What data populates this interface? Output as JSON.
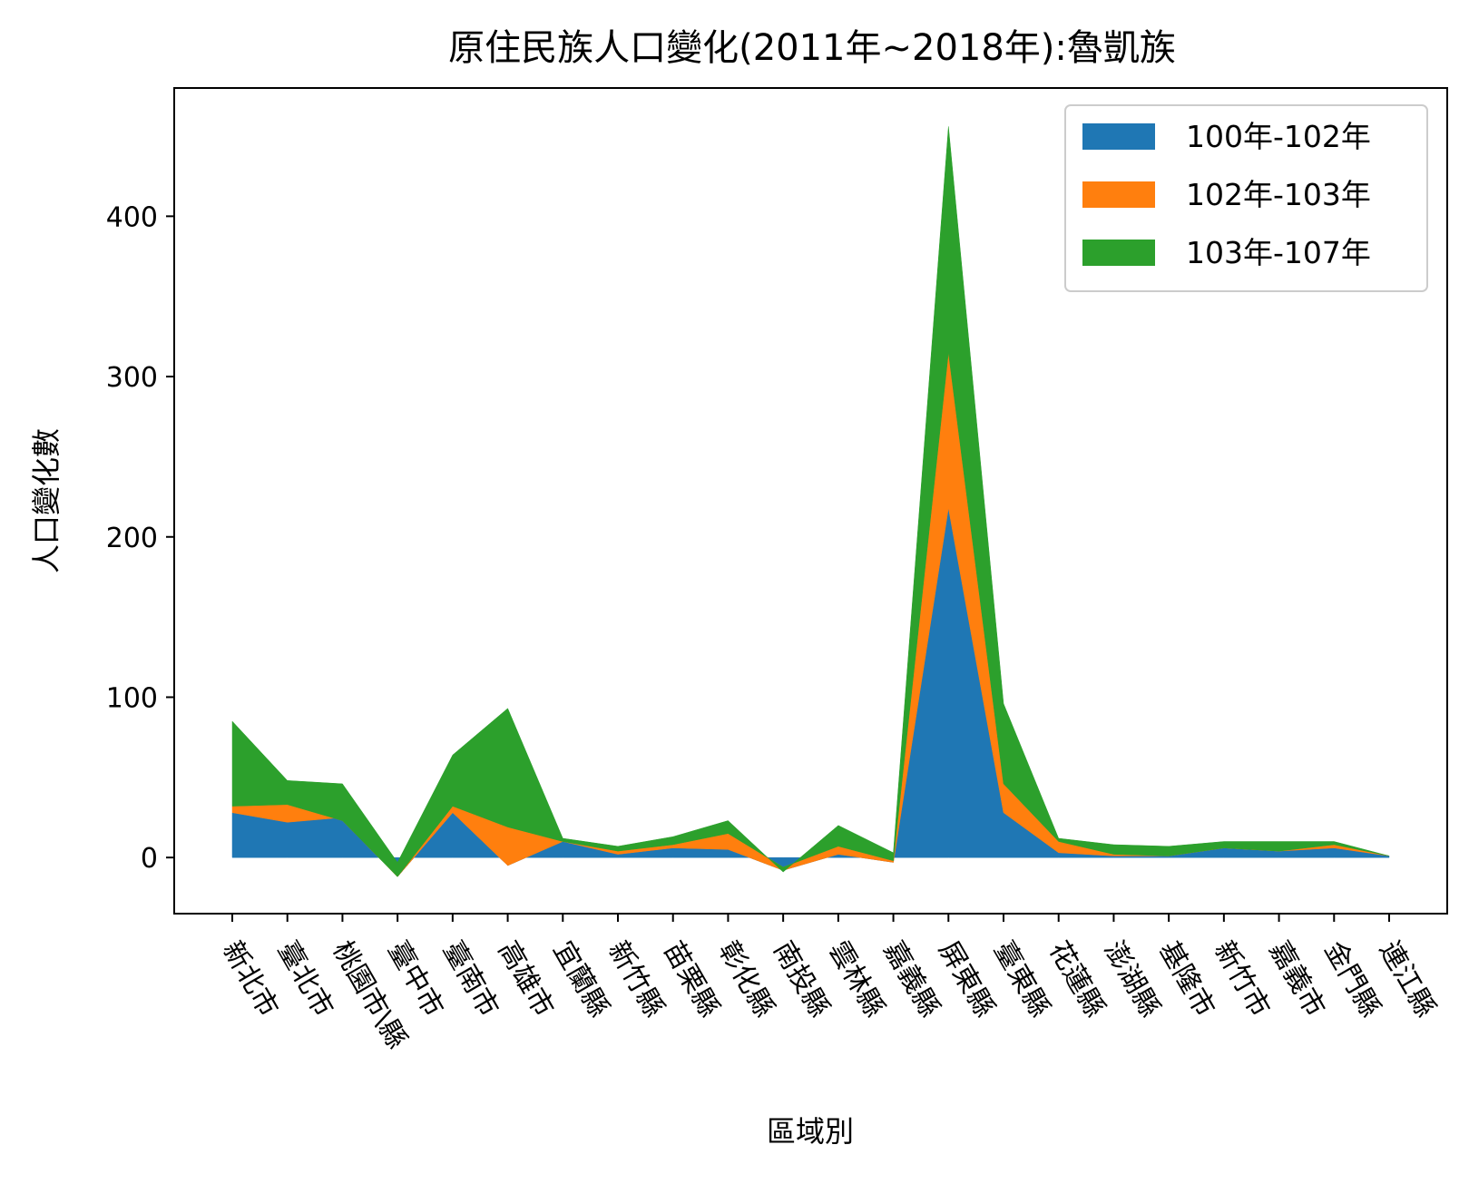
{
  "chart_data": {
    "type": "area",
    "stacked": true,
    "title": "原住民族人口變化(2011年~2018年):魯凱族",
    "xlabel": "區域別",
    "ylabel": "人口變化數",
    "ylim": [
      -35,
      480
    ],
    "yticks": [
      0,
      100,
      200,
      300,
      400
    ],
    "legend_position": "top-right",
    "categories": [
      "新北市",
      "臺北市",
      "桃園市\\縣",
      "臺中市",
      "臺南市",
      "高雄市",
      "宜蘭縣",
      "新竹縣",
      "苗栗縣",
      "彰化縣",
      "南投縣",
      "雲林縣",
      "嘉義縣",
      "屏東縣",
      "臺東縣",
      "花蓮縣",
      "澎湖縣",
      "基隆市",
      "新竹市",
      "嘉義市",
      "金門縣",
      "連江縣"
    ],
    "series": [
      {
        "name": "100年-102年",
        "color": "#1f77b4",
        "values": [
          28,
          22,
          25,
          -12,
          28,
          -5,
          10,
          2,
          6,
          5,
          -8,
          2,
          -3,
          218,
          28,
          3,
          1,
          1,
          6,
          4,
          6,
          1
        ]
      },
      {
        "name": "102年-103年",
        "color": "#ff7f0e",
        "values": [
          4,
          11,
          -2,
          0,
          4,
          24,
          0,
          2,
          2,
          10,
          2,
          5,
          1,
          97,
          18,
          7,
          1,
          0,
          0,
          0,
          2,
          0
        ]
      },
      {
        "name": "103年-107年",
        "color": "#2ca02c",
        "values": [
          53,
          15,
          23,
          9,
          32,
          74,
          2,
          3,
          5,
          8,
          -3,
          13,
          5,
          141,
          50,
          2,
          6,
          6,
          4,
          6,
          2,
          0
        ]
      }
    ]
  }
}
